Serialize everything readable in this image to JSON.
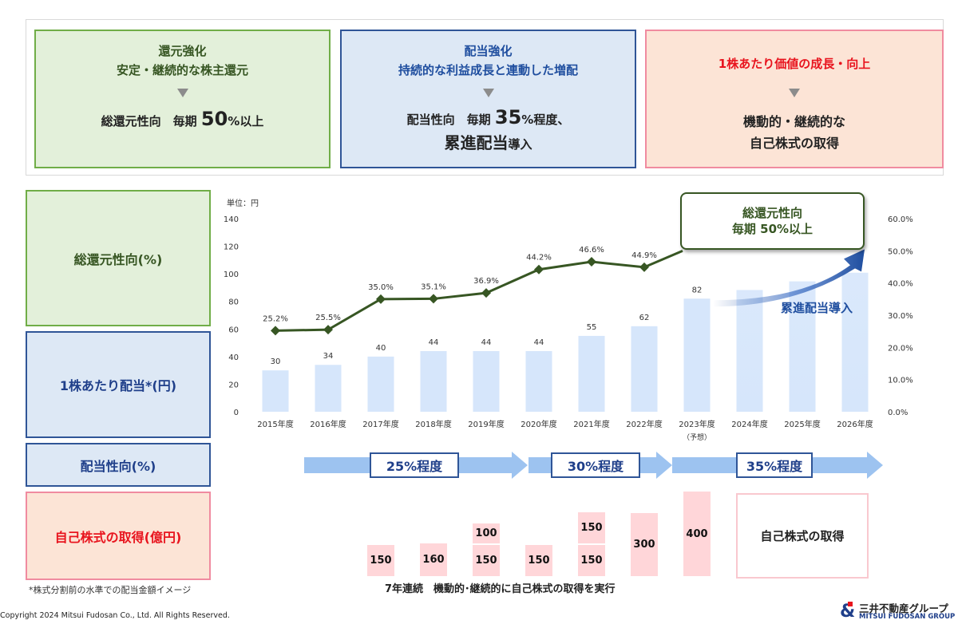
{
  "top_boxes": {
    "shareholder": {
      "title1": "還元強化",
      "title2": "安定・継続的な株主還元",
      "main_prefix": "総還元性向　毎期 ",
      "main_big": "50",
      "main_suffix": "%以上"
    },
    "dividend": {
      "title1": "配当強化",
      "title2": "持続的な利益成長と連動した増配",
      "main_prefix": "配当性向　毎期 ",
      "main_big": "35",
      "main_suffix": "%程度、",
      "line2_big": "累進配当",
      "line2_suffix": "導入"
    },
    "value": {
      "title1": "1株あたり価値の成長・向上",
      "main1": "機動的・継続的な",
      "main2": "自己株式の取得"
    }
  },
  "row_labels": {
    "total_return": "総還元性向(%)",
    "dps": "1株あたり配当*(円)",
    "payout": "配当性向(%)",
    "buyback": "自己株式の取得(億円)"
  },
  "callout": {
    "line1": "総還元性向",
    "line2": "毎期 50%以上"
  },
  "progressive_label": "累進配当導入",
  "payout_phases": [
    "25%程度",
    "30%程度",
    "35%程度"
  ],
  "buyback": {
    "bars": [
      {
        "year": "2017年度",
        "values": [
          "150"
        ]
      },
      {
        "year": "2018年度",
        "values": [
          "160"
        ]
      },
      {
        "year": "2019年度",
        "values": [
          "150",
          "100"
        ]
      },
      {
        "year": "2020年度",
        "values": [
          "150"
        ]
      },
      {
        "year": "2021年度",
        "values": [
          "150",
          "150"
        ]
      },
      {
        "year": "2022年度",
        "values": [
          "300"
        ]
      },
      {
        "year": "2023年度",
        "values": [
          "400"
        ]
      }
    ],
    "future_label": "自己株式の取得",
    "note": "7年連続　機動的･継続的に自己株式の取得を実行"
  },
  "footnote": "*株式分割前の水準での配当金額イメージ",
  "copyright": "Copyright 2024 Mitsui Fudosan Co., Ltd. All Rights Reserved.",
  "logo": {
    "jp": "三井不動産グループ",
    "en": "MITSUI FUDOSAN GROUP",
    "mark": "&"
  },
  "chart_data": {
    "type": "bar",
    "unit_label": "単位：円",
    "categories": [
      "2015年度",
      "2016年度",
      "2017年度",
      "2018年度",
      "2019年度",
      "2020年度",
      "2021年度",
      "2022年度",
      "2023年度",
      "2024年度",
      "2025年度",
      "2026年度"
    ],
    "category_note": {
      "index": 8,
      "text": "（予想）"
    },
    "ylim": [
      0,
      140
    ],
    "yticks": [
      0,
      20,
      40,
      60,
      80,
      100,
      120,
      140
    ],
    "y2lim": [
      0,
      0.6
    ],
    "y2ticks": [
      "0.0%",
      "10.0%",
      "20.0%",
      "30.0%",
      "40.0%",
      "50.0%",
      "60.0%"
    ],
    "bars": [
      30,
      34,
      40,
      44,
      44,
      44,
      55,
      62,
      82,
      null,
      null,
      null
    ],
    "bar_labels": [
      "30",
      "34",
      "40",
      "44",
      "44",
      "44",
      "55",
      "62",
      "82",
      "",
      "",
      ""
    ],
    "line": [
      0.252,
      0.255,
      0.35,
      0.351,
      0.369,
      0.442,
      0.466,
      0.449
    ],
    "line_labels": [
      "25.2%",
      "25.5%",
      "35.0%",
      "35.1%",
      "36.9%",
      "44.2%",
      "46.6%",
      "44.9%"
    ],
    "colors": {
      "bar": "#d6e6fb",
      "line": "#375623",
      "arrow": "#1f4e9f"
    }
  }
}
